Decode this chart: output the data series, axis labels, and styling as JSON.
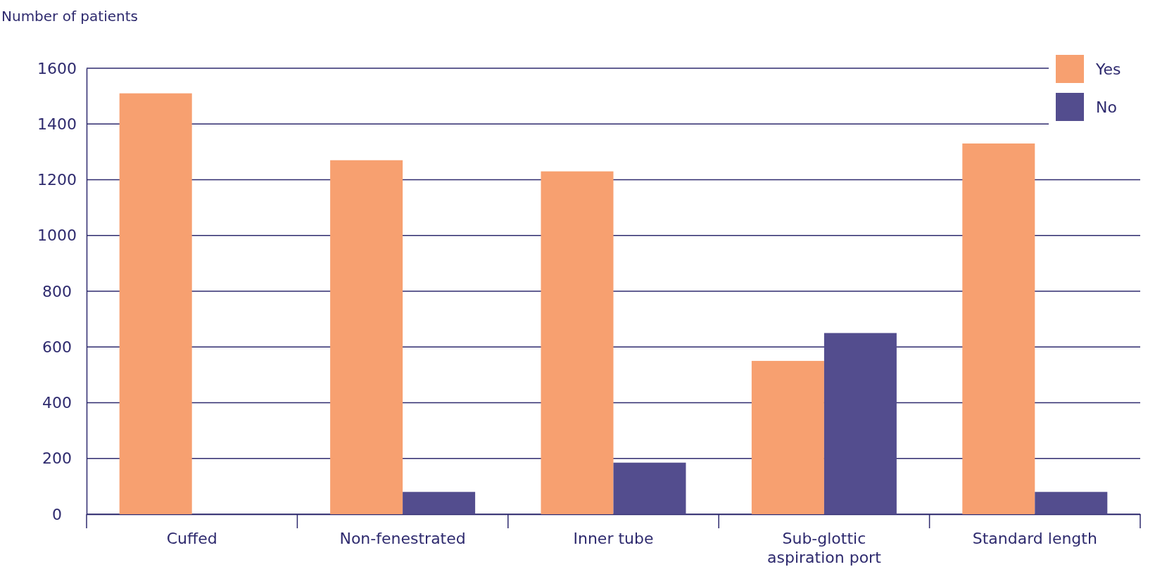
{
  "chart_data": {
    "type": "bar",
    "ylabel": "Number of patients",
    "categories": [
      "Cuffed",
      "Non-fenestrated",
      "Inner tube",
      "Sub-glottic aspiration port",
      "Standard length"
    ],
    "series": [
      {
        "name": "Yes",
        "color": "#f7a070",
        "values": [
          1510,
          1270,
          1230,
          550,
          1330
        ]
      },
      {
        "name": "No",
        "color": "#534d8e",
        "values": [
          null,
          80,
          185,
          650,
          80
        ]
      }
    ],
    "ylim": [
      0,
      1600
    ],
    "yticks": [
      0,
      200,
      400,
      600,
      800,
      1000,
      1200,
      1400,
      1600
    ],
    "grid": "y",
    "legend": "top right"
  }
}
